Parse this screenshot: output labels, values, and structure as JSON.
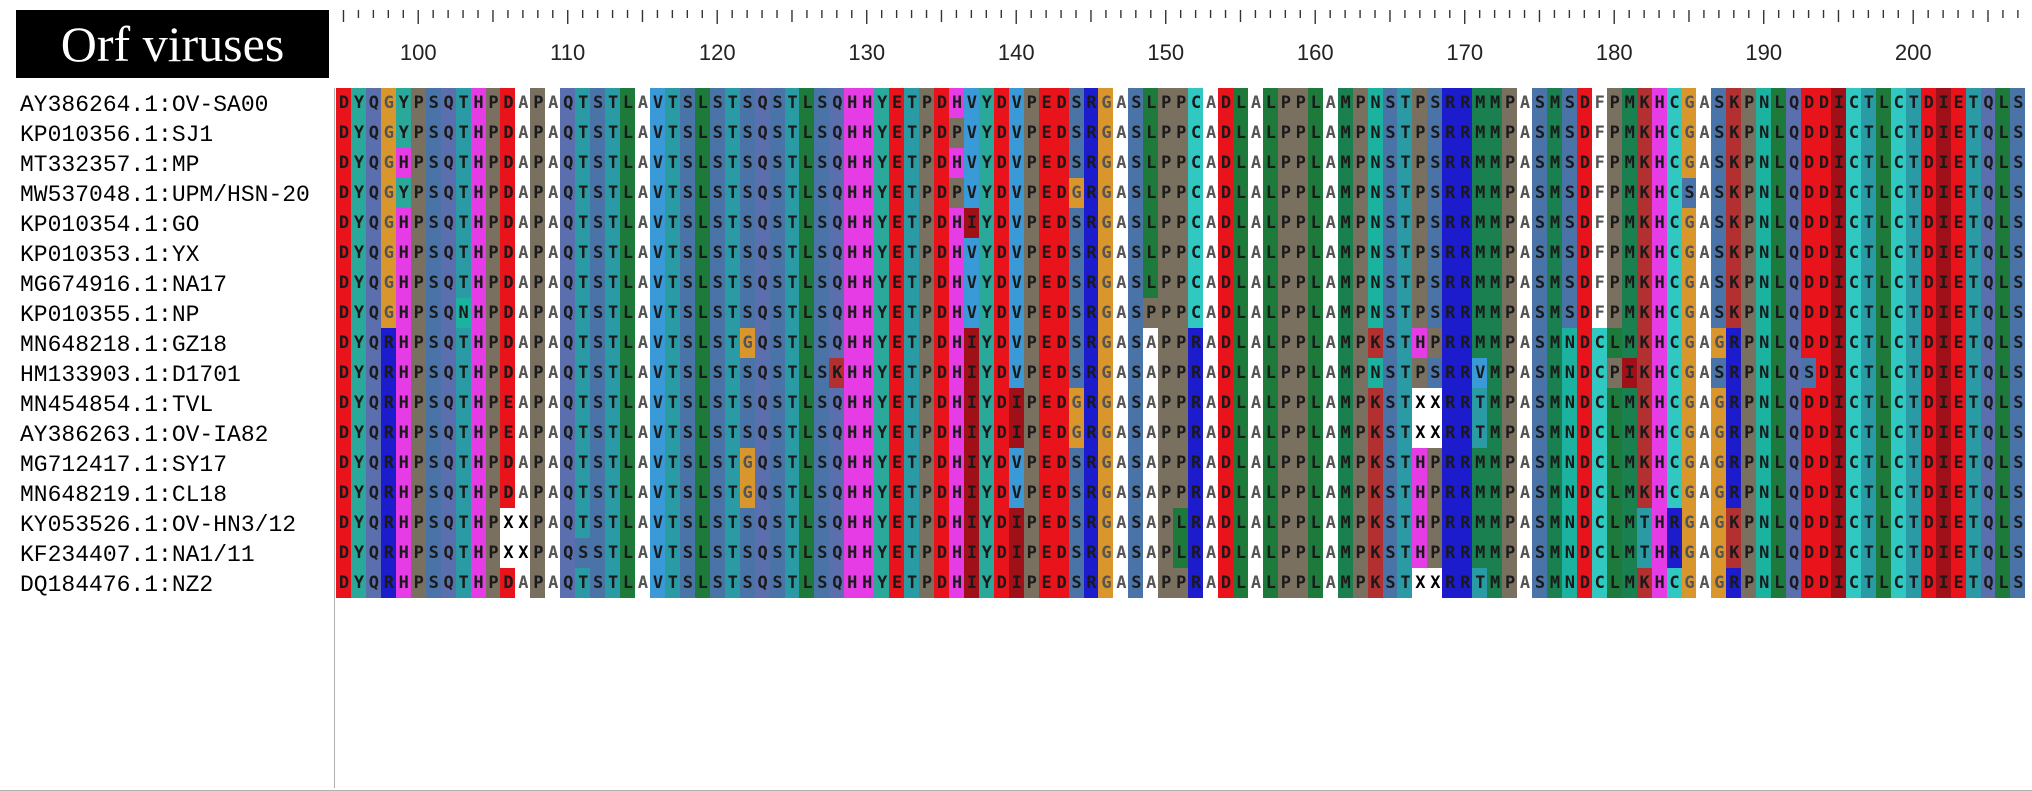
{
  "title": "Orf viruses",
  "ruler": {
    "start": 95,
    "labels": [
      "100",
      "110",
      "120",
      "130",
      "140",
      "150",
      "160",
      "170",
      "180",
      "190",
      "200"
    ]
  },
  "sequences": [
    {
      "name": "AY386264.1:OV-SA00",
      "seq": "DYQGYPSQTHPDAPAQTSTLAVTSLSTSQSTLSQHHYETPDHVYDVPEDSRGASLPPCADLALPPLAMPNSTPSRRMMPASMSDFPMKHCGASKPNLQDDICTLCTDIETQLSAL"
    },
    {
      "name": "KP010356.1:SJ1",
      "seq": "DYQGYPSQTHPDAPAQTSTLAVTSLSTSQSTLSQHHYETPDPVYDVPEDSRGASLPPCADLALPPLAMPNSTPSRRMMPASMSDFPMKHCGASKPNLQDDICTLCTDIETQLSAL"
    },
    {
      "name": "MT332357.1:MP",
      "seq": "DYQGHPSQTHPDAPAQTSTLAVTSLSTSQSTLSQHHYETPDHVYDVPEDSRGASLPPCADLALPPLAMPNSTPSRRMMPASMSDFPMKHCGASKPNLQDDICTLCTDIETQLSAL"
    },
    {
      "name": "MW537048.1:UPM/HSN-20",
      "seq": "DYQGYPSQTHPDAPAQTSTLAVTSLSTSQSTLSQHHYETPDPVYDVPEDGRGASLPPCADLALPPLAMPNSTPSRRMMPASMSDFPMKHCSASKPNLQDDICTLCTDIETQLSAL"
    },
    {
      "name": "KP010354.1:GO",
      "seq": "DYQGHPSQTHPDAPAQTSTLAVTSLSTSQSTLSQHHYETPDHIYDVPEDSRGASLPPCADLALPPLAMPNSTPSRRMMPASMSDFPMKHCGASKPNLQDDICTLCTDIETQLSAL"
    },
    {
      "name": "KP010353.1:YX",
      "seq": "DYQGHPSQTHPDAPAQTSTLAVTSLSTSQSTLSQHHYETPDHVYDVPEDSRGASLPPCADLALPPLAMPNSTPSRRMMPASMSDFPMKHCGASKPNLQDDICTLCTDIETQLSAL"
    },
    {
      "name": "MG674916.1:NA17",
      "seq": "DYQGHPSQTHPDAPAQTSTLAVTSLSTSQSTLSQHHYETPDHVYDVPEDSRGASLPPCADLALPPLAMPNSTPSRRMMPASMSDFPMKHCGASKPNLQDDICTLCTDIETQLSAL"
    },
    {
      "name": "KP010355.1:NP",
      "seq": "DYQGHPSQNHPDAPAQTSTLAVTSLSTSQSTLSQHHYETPDHVYDVPEDSRGASPPPCADLALPPLAMPNSTPSRRMMPASMSDFPMKHCGASKPNLQDDICTLCTDIETQLSAL"
    },
    {
      "name": "MN648218.1:GZ18",
      "seq": "DYQRHPSQTHPDAPAQTSTLAVTSLSTGQSTLSQHHYETPDHIYDVPEDSRGASAPPRADLALPPLAMPKSTHPRRMMPASMNDCLMKHCGAGRPNLQDDICTLCTDIETQLSAL"
    },
    {
      "name": "HM133903.1:D1701",
      "seq": "DYQRHPSQTHPDAPAQTSTLAVTSLSTSQSTLSKHHYETPDHIYDVPEDSRGASAPPRADLALPPLAMPNSTPSRRVMPASMNDCPIKHCGASRPNLQSDICTLCTDIETQLSAL"
    },
    {
      "name": "MN454854.1:TVL",
      "seq": "DYQRHPSQTHPEAPAQTSTLAVTSLSTSQSTLSQHHYETPDHIYDIPEDGRGASAPPRADLALPPLAMPKSTXXRRTMPASMNDCLMKHCGAGRPNLQDDICTLCTDIETQLSAL"
    },
    {
      "name": "AY386263.1:OV-IA82",
      "seq": "DYQRHPSQTHPEAPAQTSTLAVTSLSTSQSTLSQHHYETPDHIYDIPEDGRGASAPPRADLALPPLAMPKSTXXRRTMPASMNDCLMKHCGAGRPNLQDDICTLCTDIETQLSAL"
    },
    {
      "name": "MG712417.1:SY17",
      "seq": "DYQRHPSQTHPDAPAQTSTLAVTSLSTGQSTLSQHHYETPDHIYDVPEDSRGASAPPRADLALPPLAMPKSTHPRRMMPASMNDCLMKHCGAGRPNLQDDICTLCTDIETQLSAL"
    },
    {
      "name": "MN648219.1:CL18",
      "seq": "DYQRHPSQTHPDAPAQTSTLAVTSLSTGQSTLSQHHYETPDHIYDVPEDSRGASAPPRADLALPPLAMPKSTHPRRMMPASMNDCLMKHCGAGRPNLQDDICTLCTDIETQLSAL"
    },
    {
      "name": "KY053526.1:OV-HN3/12",
      "seq": "DYQRHPSQTHPXXPAQTSTLAVTSLSTSQSTLSQHHYETPDHIYDIPEDSRGASAPLRADLALPPLAMPKSTHPRRMMPASMNDCLMTHRGAGKPNLQDDICTLCTDIETQLSAL"
    },
    {
      "name": "KF234407.1:NA1/11",
      "seq": "DYQRHPSQTHPXXPAQSSTLAVTSLSTSQSTLSQHHYETPDHIYDIPEDSRGASAPLRADLALPPLAMPKSTHPRRMMPASMNDCLMTHRGAGKPNLQDDICTLCTDIETQLSAL"
    },
    {
      "name": "DQ184476.1:NZ2",
      "seq": "DYQRHPSQTHPDAPAQTSTLAVTSLSTSQSTLSQHHYETPDHIYDIPEDSRGASAPPRADLALPPLAMPKSTXXRRTMPASMNDCLMKHCGAGRPNLQDDICTLCTDIETQLSAL"
    }
  ],
  "colors": {
    "D": "#e8131b",
    "E": "#e8131b",
    "Y": "#2aa89a",
    "Q": "#5b6fae",
    "G": "#d9962c",
    "R": "#1c1ccc",
    "H": "#e63ce6",
    "P": "#7a7060",
    "S": "#4a74a8",
    "T": "#2a9ba5",
    "N": "#1bb3a0",
    "A": "#ffffff",
    "L": "#1e7a3a",
    "V": "#3a9ad8",
    "K": "#b33030",
    "C": "#30c8c0",
    "M": "#1a8050",
    "I": "#a01018",
    "F": "#ffffff",
    "W": "#c0c0c0",
    "X": "#ffffff"
  }
}
